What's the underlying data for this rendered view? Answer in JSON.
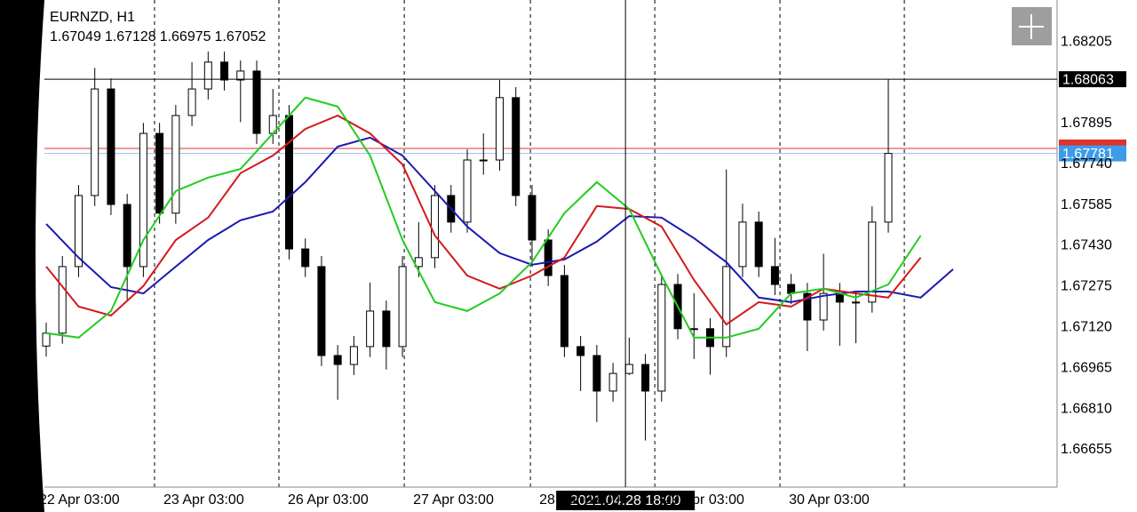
{
  "chart_data": {
    "type": "candlestick",
    "symbol": "EURNZD, H1",
    "header_ohlc": [
      1.67049,
      1.67128,
      1.66975,
      1.67052
    ],
    "xlim": [
      -0.11,
      62.42
    ],
    "ylim": [
      1.66513,
      1.68364
    ],
    "yticks": [
      1.68205,
      1.67895,
      {
        "value": 1.6774,
        "label": "1.67740"
      },
      1.67585,
      {
        "value": 1.6743,
        "label": "1.67430"
      },
      1.67275,
      {
        "value": 1.6712,
        "label": "1.67120"
      },
      1.66965,
      {
        "value": 1.6681,
        "label": "1.66810"
      },
      1.66655
    ],
    "xticks": [
      {
        "value": -0.99,
        "label": "22 Apr 03:00"
      },
      {
        "value": 6.69,
        "label": "23 Apr 03:00"
      },
      {
        "value": 14.37,
        "label": "26 Apr 03:00"
      },
      {
        "value": 22.11,
        "label": "27 Apr 03:00"
      },
      {
        "value": 29.9,
        "label": "28 Apr 03:00"
      },
      {
        "value": 37.58,
        "label": "29 Apr 03:00"
      },
      {
        "value": 45.31,
        "label": "30 Apr 03:00"
      },
      {
        "value": 52.99,
        "label": null
      }
    ],
    "grid": true,
    "open": [
      1.67049,
      1.67098,
      1.67351,
      1.67621,
      1.68026,
      1.67587,
      1.67351,
      1.67857,
      1.67554,
      1.67925,
      1.68026,
      1.68128,
      1.6806,
      1.68094,
      1.67857,
      1.67925,
      1.67418,
      1.67351,
      1.67013,
      1.66979,
      1.67047,
      1.67182,
      1.67047,
      1.67351,
      1.67385,
      1.67621,
      1.6752,
      1.67756,
      1.67756,
      1.67993,
      1.67621,
      1.67452,
      1.67317,
      1.67047,
      1.67013,
      1.66878,
      1.66945,
      1.66979,
      1.66878,
      1.67283,
      1.67115,
      1.67115,
      1.67047,
      1.67351,
      1.6752,
      1.67351,
      1.67283,
      1.67249,
      1.67148,
      1.67249,
      1.67216,
      1.67216,
      1.6752
    ],
    "high": [
      1.67138,
      1.67391,
      1.67661,
      1.68106,
      1.68066,
      1.67627,
      1.67897,
      1.67897,
      1.67965,
      1.68128,
      1.68168,
      1.68168,
      1.68134,
      1.68134,
      1.68026,
      1.67965,
      1.67458,
      1.67391,
      1.67053,
      1.67087,
      1.6729,
      1.67222,
      1.67391,
      1.6752,
      1.67661,
      1.67661,
      1.67796,
      1.67857,
      1.6806,
      1.68033,
      1.67661,
      1.67492,
      1.67357,
      1.67087,
      1.67053,
      1.66985,
      1.67081,
      1.67019,
      1.67323,
      1.67323,
      1.6725,
      1.67155,
      1.6772,
      1.6759,
      1.6756,
      1.6746,
      1.67323,
      1.67289,
      1.674,
      1.67289,
      1.67256,
      1.6758,
      1.68063
    ],
    "low": [
      1.67009,
      1.67058,
      1.67311,
      1.67581,
      1.67547,
      1.67221,
      1.67311,
      1.67514,
      1.67514,
      1.67885,
      1.67986,
      1.6802,
      1.679,
      1.67817,
      1.67817,
      1.67378,
      1.67311,
      1.66973,
      1.66845,
      1.66939,
      1.67007,
      1.6696,
      1.67007,
      1.67311,
      1.67345,
      1.6748,
      1.6748,
      1.677,
      1.67716,
      1.67581,
      1.6735,
      1.67277,
      1.67007,
      1.66878,
      1.6676,
      1.66838,
      1.66939,
      1.6669,
      1.66838,
      1.67075,
      1.67,
      1.6694,
      1.67007,
      1.67311,
      1.67311,
      1.67243,
      1.67209,
      1.6703,
      1.67108,
      1.6705,
      1.6706,
      1.67176,
      1.6748
    ],
    "close": [
      1.67098,
      1.67351,
      1.67621,
      1.68026,
      1.67587,
      1.67351,
      1.67857,
      1.67554,
      1.67925,
      1.68026,
      1.68128,
      1.6806,
      1.68094,
      1.67857,
      1.67925,
      1.67418,
      1.67351,
      1.67013,
      1.66979,
      1.67047,
      1.67182,
      1.67047,
      1.67351,
      1.67385,
      1.67621,
      1.6752,
      1.67756,
      1.67756,
      1.67993,
      1.67621,
      1.67452,
      1.67317,
      1.67047,
      1.67013,
      1.66878,
      1.66945,
      1.66979,
      1.66878,
      1.67283,
      1.67115,
      1.67115,
      1.67047,
      1.67351,
      1.6752,
      1.67351,
      1.67283,
      1.67249,
      1.67148,
      1.67249,
      1.67216,
      1.67216,
      1.6752,
      1.67781
    ],
    "ma_x": [
      0,
      2,
      4,
      6,
      8,
      10,
      12,
      14,
      16,
      18,
      20,
      22,
      24,
      26,
      28,
      30,
      32,
      34,
      36,
      38,
      40,
      42,
      44,
      46,
      48,
      50,
      52,
      54,
      56
    ],
    "series": [
      {
        "color": "#1a1ab0",
        "values": [
          1.67513,
          1.67385,
          1.67273,
          1.67249,
          1.67351,
          1.67452,
          1.67527,
          1.6756,
          1.67672,
          1.67807,
          1.67841,
          1.67773,
          1.67638,
          1.67503,
          1.67402,
          1.67358,
          1.67378,
          1.67446,
          1.67543,
          1.67537,
          1.67459,
          1.67368,
          1.67233,
          1.67216,
          1.6724,
          1.67256,
          1.67256,
          1.67233,
          1.67341
        ]
      },
      {
        "color": "#d41a1a",
        "values": [
          1.67351,
          1.67199,
          1.67165,
          1.67277,
          1.67452,
          1.67537,
          1.67706,
          1.67773,
          1.67874,
          1.67925,
          1.67857,
          1.67739,
          1.67469,
          1.67317,
          1.67267,
          1.67317,
          1.67385,
          1.67581,
          1.6757,
          1.67503,
          1.673,
          1.67131,
          1.67216,
          1.67199,
          1.67267,
          1.67249,
          1.67233,
          1.67385,
          null
        ]
      },
      {
        "color": "#22cc22",
        "values": [
          1.67098,
          1.67081,
          1.67182,
          1.67452,
          1.67638,
          1.67689,
          1.67722,
          1.67857,
          1.67993,
          1.67959,
          1.67773,
          1.67452,
          1.67216,
          1.67182,
          1.67249,
          1.67368,
          1.67554,
          1.67672,
          1.6757,
          1.67317,
          1.67081,
          1.67081,
          1.67115,
          1.67249,
          1.67267,
          1.67233,
          1.67283,
          1.67469,
          null
        ]
      }
    ],
    "bid_line": 1.678,
    "ask_line": 1.67781,
    "crosshair": {
      "price": 1.68063,
      "index": 35.77,
      "time_label": "2021.04.28 18:00"
    }
  }
}
